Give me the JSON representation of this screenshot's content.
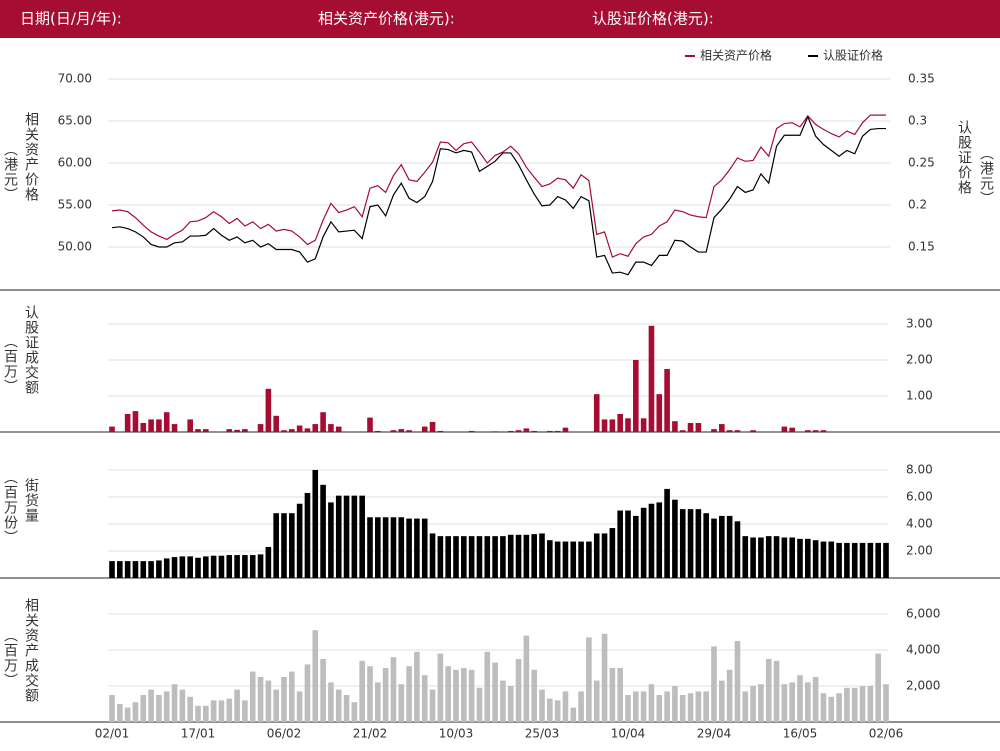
{
  "header": [
    "日期(日/月/年):",
    "相关资产价格(港元):",
    "认股证价格(港元):"
  ],
  "chart_data": [
    {
      "type": "line",
      "y_label": [
        "相关资产价格",
        "（港元）"
      ],
      "y2_label": [
        "认股证价格",
        "（港元）"
      ],
      "legend": "upper right",
      "grid": true,
      "ylim": [
        45,
        72.5
      ],
      "yticks": [
        {
          "value": 50,
          "label": "50.00"
        },
        {
          "value": 55,
          "label": "55.00"
        },
        {
          "value": 60,
          "label": "60.00"
        },
        {
          "value": 65,
          "label": "65.00"
        },
        {
          "value": 70,
          "label": "70.00"
        }
      ],
      "y2lim": [
        0.1,
        0.375
      ],
      "y2ticks": [
        0.15,
        0.2,
        0.25,
        0.3,
        0.35
      ],
      "series": [
        {
          "name": "相关资产价格",
          "color": "#a50d32",
          "values": [
            54.3,
            54.4,
            54.2,
            53.5,
            52.6,
            51.8,
            51.3,
            50.9,
            51.5,
            52.0,
            53.0,
            53.1,
            53.5,
            54.2,
            53.6,
            52.8,
            53.4,
            52.5,
            53.0,
            52.2,
            52.7,
            51.9,
            52.1,
            51.9,
            51.2,
            50.3,
            50.8,
            53.2,
            55.2,
            54.1,
            54.4,
            54.8,
            53.6,
            57.0,
            57.3,
            56.5,
            58.5,
            59.8,
            58.0,
            57.8,
            58.9,
            60.1,
            62.5,
            62.4,
            61.5,
            62.3,
            62.5,
            61.3,
            60.0,
            60.9,
            61.3,
            62.0,
            61.1,
            59.5,
            58.3,
            57.2,
            57.5,
            58.2,
            58.0,
            57.0,
            58.6,
            57.9,
            51.5,
            51.8,
            48.8,
            49.2,
            48.9,
            50.4,
            51.2,
            51.5,
            52.5,
            53.0,
            54.4,
            54.2,
            53.8,
            53.6,
            53.5,
            57.2,
            58.0,
            59.2,
            60.6,
            60.2,
            60.3,
            61.9,
            60.8,
            64.1,
            64.7,
            64.8,
            64.3,
            65.6,
            64.6,
            64.0,
            63.5,
            63.1,
            63.8,
            63.4,
            64.8,
            65.7,
            65.7,
            65.7
          ]
        },
        {
          "name": "认股证价格",
          "color": "#000000",
          "axis": "y2",
          "values": [
            0.173,
            0.174,
            0.172,
            0.168,
            0.162,
            0.153,
            0.15,
            0.15,
            0.155,
            0.156,
            0.163,
            0.163,
            0.164,
            0.172,
            0.164,
            0.158,
            0.162,
            0.155,
            0.158,
            0.15,
            0.154,
            0.147,
            0.147,
            0.147,
            0.144,
            0.132,
            0.136,
            0.162,
            0.18,
            0.168,
            0.169,
            0.17,
            0.16,
            0.198,
            0.2,
            0.187,
            0.212,
            0.226,
            0.208,
            0.203,
            0.21,
            0.228,
            0.267,
            0.266,
            0.262,
            0.265,
            0.263,
            0.24,
            0.246,
            0.252,
            0.262,
            0.262,
            0.248,
            0.23,
            0.213,
            0.199,
            0.2,
            0.21,
            0.206,
            0.196,
            0.21,
            0.205,
            0.138,
            0.14,
            0.119,
            0.12,
            0.117,
            0.132,
            0.132,
            0.128,
            0.14,
            0.14,
            0.158,
            0.157,
            0.15,
            0.144,
            0.144,
            0.185,
            0.195,
            0.207,
            0.222,
            0.215,
            0.218,
            0.237,
            0.226,
            0.27,
            0.283,
            0.283,
            0.283,
            0.305,
            0.282,
            0.272,
            0.265,
            0.258,
            0.265,
            0.261,
            0.282,
            0.29,
            0.291,
            0.291
          ]
        }
      ]
    },
    {
      "type": "bar",
      "y_label": [
        "认股证成交额",
        "（百万）"
      ],
      "color": "#a50d32",
      "grid": true,
      "ylim": [
        0,
        3.5
      ],
      "yticks": [
        {
          "value": 1,
          "label": "1.00"
        },
        {
          "value": 2,
          "label": "2.00"
        },
        {
          "value": 3,
          "label": "3.00"
        }
      ],
      "values": [
        0.15,
        0,
        0.5,
        0.58,
        0.25,
        0.35,
        0.35,
        0.55,
        0.22,
        0,
        0.35,
        0.08,
        0.08,
        0,
        0,
        0.08,
        0.06,
        0.08,
        0,
        0.22,
        1.2,
        0.45,
        0.05,
        0.08,
        0.18,
        0.1,
        0.22,
        0.55,
        0.22,
        0.15,
        0,
        0,
        0,
        0.4,
        0.03,
        0,
        0.05,
        0.08,
        0.05,
        0,
        0.15,
        0.28,
        0.03,
        0,
        0,
        0,
        0.03,
        0,
        0,
        0.02,
        0,
        0.03,
        0.05,
        0.1,
        0.03,
        0,
        0.03,
        0.03,
        0.12,
        0,
        0,
        0,
        1.05,
        0.35,
        0.35,
        0.5,
        0.38,
        2.0,
        0.38,
        2.95,
        1.05,
        1.75,
        0.3,
        0.05,
        0.25,
        0.25,
        0,
        0.08,
        0.22,
        0.05,
        0.05,
        0,
        0.05,
        0,
        0,
        0,
        0.15,
        0.12,
        0,
        0.05,
        0.05,
        0.05,
        0,
        0,
        0,
        0,
        0,
        0,
        0,
        0
      ]
    },
    {
      "type": "bar",
      "y_label": [
        "街货量",
        "（百万份）"
      ],
      "color": "#000000",
      "grid": true,
      "ylim": [
        0,
        9
      ],
      "yticks": [
        {
          "value": 2,
          "label": "2.00"
        },
        {
          "value": 4,
          "label": "4.00"
        },
        {
          "value": 6,
          "label": "6.00"
        },
        {
          "value": 8,
          "label": "8.00"
        }
      ],
      "values": [
        1.25,
        1.25,
        1.25,
        1.25,
        1.25,
        1.25,
        1.3,
        1.45,
        1.55,
        1.6,
        1.6,
        1.5,
        1.6,
        1.65,
        1.65,
        1.7,
        1.7,
        1.7,
        1.7,
        1.75,
        2.3,
        4.8,
        4.8,
        4.8,
        5.5,
        6.3,
        8.0,
        6.9,
        5.6,
        6.1,
        6.1,
        6.1,
        6.1,
        4.5,
        4.5,
        4.5,
        4.5,
        4.5,
        4.4,
        4.4,
        4.4,
        3.3,
        3.1,
        3.1,
        3.1,
        3.1,
        3.1,
        3.1,
        3.1,
        3.1,
        3.1,
        3.2,
        3.2,
        3.2,
        3.25,
        3.3,
        2.8,
        2.7,
        2.7,
        2.7,
        2.7,
        2.7,
        3.3,
        3.3,
        3.7,
        5.0,
        5.0,
        4.6,
        5.2,
        5.5,
        5.6,
        6.6,
        5.8,
        5.1,
        5.1,
        5.1,
        4.8,
        4.4,
        4.6,
        4.6,
        4.2,
        3.1,
        3.0,
        3.0,
        3.1,
        3.1,
        3.0,
        3.0,
        2.9,
        2.9,
        2.8,
        2.7,
        2.7,
        2.6,
        2.6,
        2.6,
        2.6,
        2.6,
        2.6,
        2.6
      ]
    },
    {
      "type": "bar",
      "y_label": [
        "相关资产成交额",
        "（百万）"
      ],
      "color": "#bdbdbd",
      "grid": true,
      "ylim": [
        0,
        7000
      ],
      "yticks": [
        {
          "value": 2000,
          "label": "2,000"
        },
        {
          "value": 4000,
          "label": "4,000"
        },
        {
          "value": 6000,
          "label": "6,000"
        }
      ],
      "categories": [
        "02/01",
        null,
        null,
        null,
        null,
        null,
        null,
        null,
        null,
        null,
        null,
        "17/01",
        null,
        null,
        null,
        null,
        null,
        null,
        null,
        null,
        null,
        null,
        "06/02",
        null,
        null,
        null,
        null,
        null,
        null,
        null,
        null,
        null,
        null,
        "21/02",
        null,
        null,
        null,
        null,
        null,
        null,
        null,
        null,
        null,
        null,
        "10/03",
        null,
        null,
        null,
        null,
        null,
        null,
        null,
        null,
        null,
        null,
        "25/03",
        null,
        null,
        null,
        null,
        null,
        null,
        null,
        null,
        null,
        null,
        "10/04",
        null,
        null,
        null,
        null,
        null,
        null,
        null,
        null,
        null,
        null,
        "29/04",
        null,
        null,
        null,
        null,
        null,
        null,
        null,
        null,
        null,
        null,
        "16/05",
        null,
        null,
        null,
        null,
        null,
        null,
        null,
        null,
        null,
        null,
        "02/06"
      ],
      "values": [
        1500,
        1000,
        800,
        1100,
        1500,
        1800,
        1500,
        1700,
        2100,
        1800,
        1400,
        900,
        900,
        1200,
        1200,
        1300,
        1800,
        1200,
        2800,
        2500,
        2300,
        1800,
        2500,
        2800,
        1700,
        3200,
        5100,
        3500,
        2200,
        1800,
        1500,
        1100,
        3400,
        3100,
        2200,
        3000,
        3600,
        2100,
        3100,
        3900,
        2600,
        1800,
        3800,
        3100,
        2900,
        3000,
        2900,
        1900,
        3900,
        3300,
        2300,
        2000,
        3500,
        4800,
        2900,
        1800,
        1300,
        1200,
        1700,
        800,
        1700,
        4700,
        2300,
        4900,
        3000,
        3000,
        1500,
        1700,
        1700,
        2100,
        1500,
        1700,
        2000,
        1500,
        1600,
        1700,
        1700,
        4200,
        2300,
        2900,
        4500,
        1700,
        2000,
        2100,
        3500,
        3400,
        2100,
        2200,
        2600,
        2200,
        2500,
        1600,
        1400,
        1600,
        1900,
        1900,
        2000,
        2000,
        3800,
        2100
      ]
    }
  ]
}
